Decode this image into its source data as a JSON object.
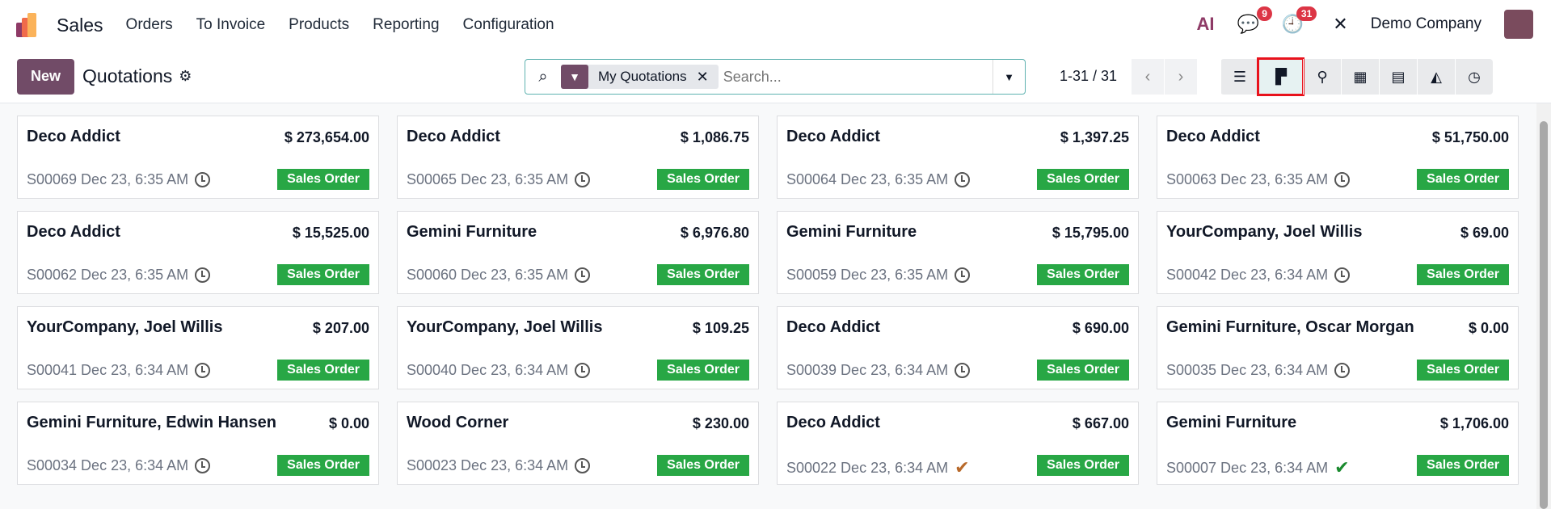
{
  "navbar": {
    "app": "Sales",
    "menus": [
      "Orders",
      "To Invoice",
      "Products",
      "Reporting",
      "Configuration"
    ],
    "messages_count": "9",
    "activities_count": "31",
    "company": "Demo Company",
    "ai_label": "AI"
  },
  "control": {
    "new_label": "New",
    "title": "Quotations",
    "filter": "My Quotations",
    "search_placeholder": "Search...",
    "pager": "1-31 / 31",
    "active_view": "kanban"
  },
  "colors": {
    "brand": "#714b67",
    "state": "#28a745",
    "accent_border": "#e8121c"
  },
  "cards": [
    {
      "name": "Deco Addict",
      "amount": "$ 273,654.00",
      "ref": "S00069 Dec 23, 6:35 AM",
      "state": "Sales Order",
      "icon": "clock"
    },
    {
      "name": "Deco Addict",
      "amount": "$ 1,086.75",
      "ref": "S00065 Dec 23, 6:35 AM",
      "state": "Sales Order",
      "icon": "clock"
    },
    {
      "name": "Deco Addict",
      "amount": "$ 1,397.25",
      "ref": "S00064 Dec 23, 6:35 AM",
      "state": "Sales Order",
      "icon": "clock"
    },
    {
      "name": "Deco Addict",
      "amount": "$ 51,750.00",
      "ref": "S00063 Dec 23, 6:35 AM",
      "state": "Sales Order",
      "icon": "clock"
    },
    {
      "name": "Deco Addict",
      "amount": "$ 15,525.00",
      "ref": "S00062 Dec 23, 6:35 AM",
      "state": "Sales Order",
      "icon": "clock"
    },
    {
      "name": "Gemini Furniture",
      "amount": "$ 6,976.80",
      "ref": "S00060 Dec 23, 6:35 AM",
      "state": "Sales Order",
      "icon": "clock"
    },
    {
      "name": "Gemini Furniture",
      "amount": "$ 15,795.00",
      "ref": "S00059 Dec 23, 6:35 AM",
      "state": "Sales Order",
      "icon": "clock"
    },
    {
      "name": "YourCompany, Joel Willis",
      "amount": "$ 69.00",
      "ref": "S00042 Dec 23, 6:34 AM",
      "state": "Sales Order",
      "icon": "clock"
    },
    {
      "name": "YourCompany, Joel Willis",
      "amount": "$ 207.00",
      "ref": "S00041 Dec 23, 6:34 AM",
      "state": "Sales Order",
      "icon": "clock"
    },
    {
      "name": "YourCompany, Joel Willis",
      "amount": "$ 109.25",
      "ref": "S00040 Dec 23, 6:34 AM",
      "state": "Sales Order",
      "icon": "clock"
    },
    {
      "name": "Deco Addict",
      "amount": "$ 690.00",
      "ref": "S00039 Dec 23, 6:34 AM",
      "state": "Sales Order",
      "icon": "clock"
    },
    {
      "name": "Gemini Furniture, Oscar Morgan",
      "amount": "$ 0.00",
      "ref": "S00035 Dec 23, 6:34 AM",
      "state": "Sales Order",
      "icon": "clock"
    },
    {
      "name": "Gemini Furniture, Edwin Hansen",
      "amount": "$ 0.00",
      "ref": "S00034 Dec 23, 6:34 AM",
      "state": "Sales Order",
      "icon": "clock"
    },
    {
      "name": "Wood Corner",
      "amount": "$ 230.00",
      "ref": "S00023 Dec 23, 6:34 AM",
      "state": "Sales Order",
      "icon": "clock"
    },
    {
      "name": "Deco Addict",
      "amount": "$ 667.00",
      "ref": "S00022 Dec 23, 6:34 AM",
      "state": "Sales Order",
      "icon": "check",
      "icon_color": "#b8692a"
    },
    {
      "name": "Gemini Furniture",
      "amount": "$ 1,706.00",
      "ref": "S00007 Dec 23, 6:34 AM",
      "state": "Sales Order",
      "icon": "check",
      "icon_color": "#1a8a2e"
    }
  ]
}
